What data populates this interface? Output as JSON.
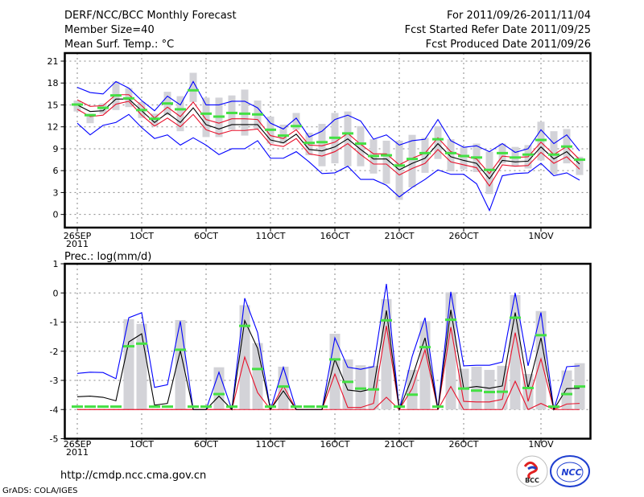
{
  "header": {
    "title": "DERF/NCC/BCC Monthly Forecast",
    "member_size": "Member Size=40",
    "variable": "Mean Surf. Temp.: °C",
    "period": "For 2011/09/26-2011/11/04",
    "refer_date": "Fcst Started Refer Date 2011/09/25",
    "produced_date": "Fcst Produced Date 2011/09/26"
  },
  "footer": {
    "url": "http://cmdp.ncc.cma.gov.cn",
    "credit": "GrADS: COLA/IGES",
    "logo_bcc": "BCC",
    "logo_ncc": "NCC"
  },
  "colors": {
    "mean": "#000000",
    "spread": "#e8102a",
    "extreme": "#0000ff",
    "obs": "#44e044",
    "range": "#d3d3d8",
    "grid": "#888888"
  },
  "chart_data": [
    {
      "type": "line",
      "title": "Mean Surf. Temp.: °C",
      "x_days": 40,
      "x_ticks": [
        {
          "day": 0,
          "label": "26SEP",
          "sub": "2011"
        },
        {
          "day": 5,
          "label": "1OCT"
        },
        {
          "day": 10,
          "label": "6OCT"
        },
        {
          "day": 15,
          "label": "11OCT"
        },
        {
          "day": 20,
          "label": "16OCT"
        },
        {
          "day": 25,
          "label": "21OCT"
        },
        {
          "day": 30,
          "label": "26OCT"
        },
        {
          "day": 36,
          "label": "1NOV"
        }
      ],
      "y_ticks": [
        "0",
        "3",
        "6",
        "9",
        "12",
        "15",
        "18",
        "21"
      ],
      "ylim": [
        -1.8,
        22.1
      ],
      "grid": true,
      "series": {
        "max": [
          17.4,
          16.7,
          16.5,
          18.2,
          17.3,
          15.6,
          14.2,
          16.2,
          15.0,
          18.2,
          15.0,
          15.0,
          15.5,
          15.5,
          14.6,
          12.5,
          11.7,
          13.2,
          10.6,
          11.4,
          13.0,
          13.6,
          12.8,
          10.3,
          10.9,
          9.5,
          10.1,
          10.3,
          13.0,
          10.1,
          9.2,
          9.4,
          8.6,
          9.7,
          8.5,
          9.0,
          11.6,
          9.7,
          10.9,
          8.7
        ],
        "upper": [
          15.7,
          14.8,
          14.9,
          16.4,
          16.4,
          14.9,
          13.2,
          14.7,
          13.4,
          15.4,
          13.0,
          12.5,
          13.1,
          13.1,
          13.0,
          10.8,
          10.4,
          11.6,
          9.5,
          9.4,
          9.9,
          11.1,
          9.6,
          8.3,
          8.3,
          6.8,
          7.7,
          8.4,
          10.5,
          8.6,
          8.0,
          7.6,
          5.6,
          8.0,
          7.8,
          7.9,
          9.9,
          8.2,
          9.3,
          7.5
        ],
        "mean": [
          15.0,
          14.1,
          14.2,
          15.8,
          15.8,
          14.2,
          12.6,
          13.9,
          12.6,
          14.6,
          12.3,
          11.7,
          12.3,
          12.3,
          12.3,
          10.2,
          9.8,
          11.0,
          8.9,
          8.7,
          9.25,
          10.35,
          8.9,
          7.6,
          7.6,
          6.1,
          7.0,
          7.7,
          9.7,
          7.9,
          7.4,
          7.0,
          4.9,
          7.4,
          7.2,
          7.3,
          9.25,
          7.6,
          8.6,
          6.9
        ],
        "lower": [
          14.4,
          13.4,
          13.6,
          15.1,
          15.5,
          13.6,
          12.1,
          13.2,
          12.0,
          13.7,
          11.6,
          11.0,
          11.5,
          11.5,
          11.7,
          9.6,
          9.3,
          10.4,
          8.3,
          8.0,
          8.6,
          9.7,
          8.2,
          6.9,
          6.9,
          5.4,
          6.3,
          7.0,
          8.9,
          7.2,
          6.8,
          6.4,
          3.9,
          6.8,
          6.6,
          6.7,
          8.5,
          7.0,
          7.9,
          6.2
        ],
        "min": [
          12.5,
          10.9,
          12.2,
          12.6,
          13.7,
          11.9,
          10.4,
          10.9,
          9.5,
          10.5,
          9.5,
          8.2,
          9.0,
          9.0,
          10.1,
          7.7,
          7.7,
          8.6,
          7.2,
          5.6,
          5.7,
          6.6,
          4.8,
          4.8,
          4.0,
          2.4,
          3.7,
          4.8,
          6.1,
          5.5,
          5.5,
          4.2,
          0.55,
          5.3,
          5.6,
          5.7,
          7.0,
          5.3,
          5.7,
          4.7
        ],
        "obs": [
          15.05,
          13.6,
          14.6,
          16.3,
          15.9,
          14.3,
          13.1,
          15.2,
          14.4,
          17.0,
          13.8,
          13.4,
          13.9,
          13.8,
          13.7,
          11.6,
          10.8,
          12.1,
          9.8,
          9.9,
          10.5,
          11.1,
          9.7,
          8.0,
          8.1,
          6.7,
          7.6,
          8.4,
          10.3,
          8.4,
          8.0,
          7.8,
          6.1,
          8.4,
          7.8,
          8.2,
          10.2,
          8.2,
          9.3,
          7.5
        ],
        "range_low": [
          14.1,
          12.5,
          13.8,
          14.3,
          14.7,
          13.2,
          12.1,
          13.6,
          11.4,
          15.4,
          10.6,
          10.6,
          11.6,
          10.8,
          11.7,
          9.7,
          9.7,
          11.6,
          8.1,
          6.6,
          7.0,
          6.6,
          6.6,
          5.6,
          4.2,
          2.0,
          3.7,
          5.7,
          7.6,
          5.9,
          6.2,
          5.8,
          2.8,
          7.0,
          6.6,
          6.3,
          7.4,
          5.5,
          7.0,
          5.4
        ],
        "range_high": [
          15.6,
          13.8,
          15.2,
          18.2,
          17.3,
          15.4,
          13.8,
          16.8,
          16.2,
          19.4,
          16.0,
          16.0,
          16.3,
          17.1,
          15.6,
          13.4,
          12.3,
          13.9,
          11.2,
          12.4,
          13.9,
          14.1,
          12.1,
          10.3,
          10.1,
          10.1,
          10.9,
          10.5,
          12.1,
          10.3,
          9.2,
          9.7,
          8.6,
          9.7,
          9.25,
          9.5,
          12.7,
          11.4,
          11.7,
          7.9
        ]
      }
    },
    {
      "type": "line",
      "title": "Prec.: log(mm/d)",
      "x_days": 40,
      "x_ticks": [
        {
          "day": 0,
          "label": "26SEP",
          "sub": "2011"
        },
        {
          "day": 5,
          "label": "1OCT"
        },
        {
          "day": 10,
          "label": "6OCT"
        },
        {
          "day": 15,
          "label": "11OCT"
        },
        {
          "day": 20,
          "label": "16OCT"
        },
        {
          "day": 25,
          "label": "21OCT"
        },
        {
          "day": 30,
          "label": "26OCT"
        },
        {
          "day": 36,
          "label": "1NOV"
        }
      ],
      "y_ticks": [
        "-5",
        "-4",
        "-3",
        "-2",
        "-1",
        "0",
        "1"
      ],
      "ylim": [
        -5,
        1
      ],
      "grid": true,
      "series": {
        "max": [
          -2.76,
          -2.72,
          -2.73,
          -2.94,
          -0.85,
          -0.68,
          -3.24,
          -3.15,
          -0.97,
          -4,
          -4,
          -2.72,
          -4,
          -0.18,
          -1.36,
          -4,
          -2.55,
          -4,
          -4,
          -4,
          -1.54,
          -2.55,
          -2.62,
          -2.53,
          0.31,
          -4,
          -2.18,
          -0.85,
          -4,
          0.04,
          -2.5,
          -2.48,
          -2.48,
          -2.37,
          0.0,
          -2.5,
          -0.67,
          -4,
          -2.53,
          -2.5
        ],
        "mean": [
          -3.56,
          -3.54,
          -3.58,
          -3.7,
          -1.68,
          -1.4,
          -3.85,
          -3.79,
          -1.98,
          -4,
          -4,
          -3.54,
          -4,
          -0.95,
          -1.9,
          -4,
          -3.36,
          -4,
          -4,
          -4,
          -2.28,
          -3.33,
          -3.38,
          -3.28,
          -0.6,
          -4,
          -2.9,
          -1.54,
          -4,
          -0.58,
          -3.27,
          -3.21,
          -3.27,
          -3.19,
          -0.67,
          -3.27,
          -1.54,
          -4,
          -3.28,
          -3.27
        ],
        "upper": [
          -4,
          -4,
          -4,
          -4,
          -4,
          -4,
          -4,
          -4,
          -4,
          -4,
          -4,
          -4,
          -4,
          -2.2,
          -3.42,
          -4,
          -3.19,
          -4,
          -4,
          -4,
          -2.78,
          -3.93,
          -3.93,
          -3.79,
          -1.13,
          -4,
          -3.28,
          -1.95,
          -4,
          -1.17,
          -3.72,
          -3.74,
          -3.74,
          -3.65,
          -1.36,
          -3.72,
          -2.26,
          -4,
          -3.81,
          -3.79
        ],
        "lower": [
          -4,
          -4,
          -4,
          -4,
          -4,
          -4,
          -4,
          -4,
          -4,
          -4,
          -4,
          -4,
          -4,
          -4,
          -4,
          -4,
          -4,
          -4,
          -4,
          -4,
          -4,
          -4,
          -4,
          -4,
          -3.58,
          -4,
          -4,
          -4,
          -4,
          -3.21,
          -4,
          -4,
          -4,
          -4,
          -3.03,
          -4,
          -3.79,
          -4,
          -4,
          -4
        ],
        "obs": [
          -3.9,
          -3.9,
          -3.9,
          -3.9,
          -1.83,
          -1.74,
          -3.9,
          -3.9,
          -1.95,
          -3.9,
          -3.9,
          -3.47,
          -3.9,
          -1.13,
          -2.61,
          -3.9,
          -3.21,
          -3.9,
          -3.9,
          -3.9,
          -2.28,
          -3.05,
          -3.28,
          -3.31,
          -0.94,
          -3.9,
          -3.49,
          -1.86,
          -3.9,
          -0.92,
          -3.28,
          -3.35,
          -3.4,
          -3.39,
          -0.85,
          -3.26,
          -1.45,
          -3.9,
          -3.47,
          -3.21
        ],
        "range_high": [
          null,
          null,
          null,
          null,
          -0.9,
          -1.06,
          null,
          null,
          -0.93,
          null,
          null,
          -2.55,
          null,
          -0.42,
          -1.72,
          null,
          -2.53,
          null,
          null,
          null,
          -1.4,
          -2.28,
          -2.48,
          -2.5,
          -0.21,
          null,
          -2.64,
          -0.97,
          null,
          0.02,
          -2.6,
          -2.53,
          -2.64,
          -2.5,
          -0.07,
          -2.78,
          -0.62,
          null,
          -2.66,
          -2.41
        ]
      }
    }
  ]
}
